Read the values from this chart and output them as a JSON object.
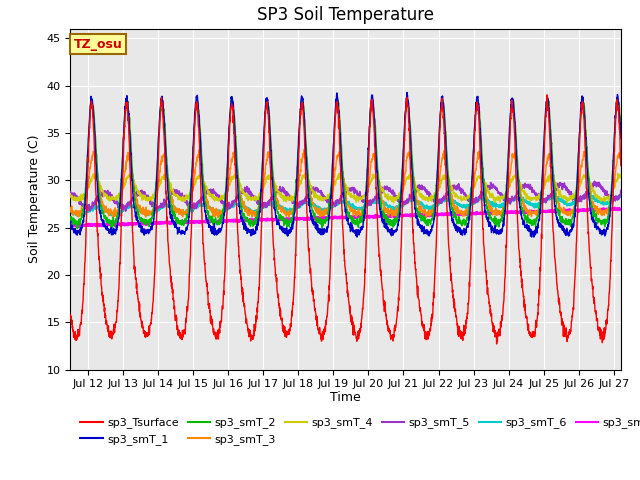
{
  "title": "SP3 Soil Temperature",
  "xlabel": "Time",
  "ylabel": "Soil Temperature (C)",
  "ylim": [
    10,
    46
  ],
  "xlim_days": [
    11.5,
    27.2
  ],
  "annotation_text": "TZ_osu",
  "annotation_color": "#cc0000",
  "annotation_bg": "#ffff99",
  "annotation_border": "#996600",
  "bg_color": "#e8e8e8",
  "series_colors": {
    "sp3_Tsurface": "#ff0000",
    "sp3_smT_1": "#0000cc",
    "sp3_smT_2": "#00bb00",
    "sp3_smT_3": "#ff8800",
    "sp3_smT_4": "#cccc00",
    "sp3_smT_5": "#9933cc",
    "sp3_smT_6": "#00cccc",
    "sp3_smT_7": "#ff00ff"
  },
  "xtick_labels": [
    "Jul 12",
    "Jul 13",
    "Jul 14",
    "Jul 15",
    "Jul 16",
    "Jul 17",
    "Jul 18",
    "Jul 19",
    "Jul 20",
    "Jul 21",
    "Jul 22",
    "Jul 23",
    "Jul 24",
    "Jul 25",
    "Jul 26",
    "Jul 27"
  ],
  "xtick_positions": [
    12,
    13,
    14,
    15,
    16,
    17,
    18,
    19,
    20,
    21,
    22,
    23,
    24,
    25,
    26,
    27
  ],
  "ytick_positions": [
    10,
    15,
    20,
    25,
    30,
    35,
    40,
    45
  ]
}
